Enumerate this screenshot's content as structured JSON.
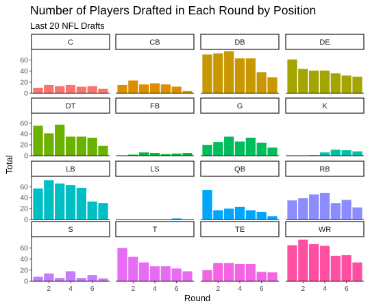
{
  "chart_data": {
    "type": "bar",
    "title": "Number of Players Drafted in Each Round by Position",
    "subtitle": "Last 20 NFL Drafts",
    "xlabel": "Round",
    "ylabel": "Total",
    "x": [
      1,
      2,
      3,
      4,
      5,
      6,
      7
    ],
    "x_ticks": [
      2,
      4,
      6
    ],
    "y_ticks": [
      0,
      20,
      40,
      60
    ],
    "ylim": [
      0,
      78
    ],
    "xlim": [
      0.4,
      7.6
    ],
    "grid": false,
    "legend": "none",
    "facets": [
      {
        "label": "C",
        "color": "#F8766D",
        "values": [
          10,
          15,
          13,
          15,
          12,
          13,
          8
        ]
      },
      {
        "label": "CB",
        "color": "#DB8E00",
        "values": [
          15,
          23,
          16,
          18,
          16,
          12,
          4
        ]
      },
      {
        "label": "DB",
        "color": "#C99800",
        "values": [
          70,
          72,
          76,
          63,
          63,
          38,
          29
        ]
      },
      {
        "label": "DE",
        "color": "#A3A500",
        "values": [
          61,
          44,
          41,
          41,
          36,
          32,
          30
        ]
      },
      {
        "label": "DT",
        "color": "#6BB100",
        "values": [
          55,
          41,
          57,
          35,
          35,
          33,
          18
        ]
      },
      {
        "label": "FB",
        "color": "#00BA38",
        "values": [
          0,
          2,
          6,
          5,
          3,
          4,
          5
        ]
      },
      {
        "label": "G",
        "color": "#00BD5C",
        "values": [
          20,
          25,
          35,
          26,
          33,
          24,
          15
        ]
      },
      {
        "label": "K",
        "color": "#00C1A3",
        "values": [
          0,
          0,
          1,
          6,
          11,
          10,
          8
        ]
      },
      {
        "label": "LB",
        "color": "#00BFC4",
        "values": [
          57,
          72,
          66,
          63,
          58,
          33,
          30
        ]
      },
      {
        "label": "LS",
        "color": "#00A9FF",
        "values": [
          0,
          0,
          0,
          0,
          0,
          2,
          0
        ]
      },
      {
        "label": "QB",
        "color": "#00A5FF",
        "values": [
          54,
          17,
          20,
          23,
          17,
          14,
          6
        ]
      },
      {
        "label": "RB",
        "color": "#8C8CFF",
        "values": [
          35,
          39,
          46,
          49,
          30,
          36,
          22
        ]
      },
      {
        "label": "S",
        "color": "#C77CFF",
        "values": [
          8,
          14,
          6,
          18,
          6,
          11,
          5
        ]
      },
      {
        "label": "T",
        "color": "#E76BF3",
        "values": [
          60,
          44,
          34,
          27,
          27,
          23,
          18
        ]
      },
      {
        "label": "TE",
        "color": "#F564E3",
        "values": [
          20,
          33,
          33,
          31,
          31,
          17,
          16
        ]
      },
      {
        "label": "WR",
        "color": "#FF4FA2",
        "values": [
          65,
          75,
          67,
          64,
          46,
          47,
          34
        ]
      }
    ]
  }
}
